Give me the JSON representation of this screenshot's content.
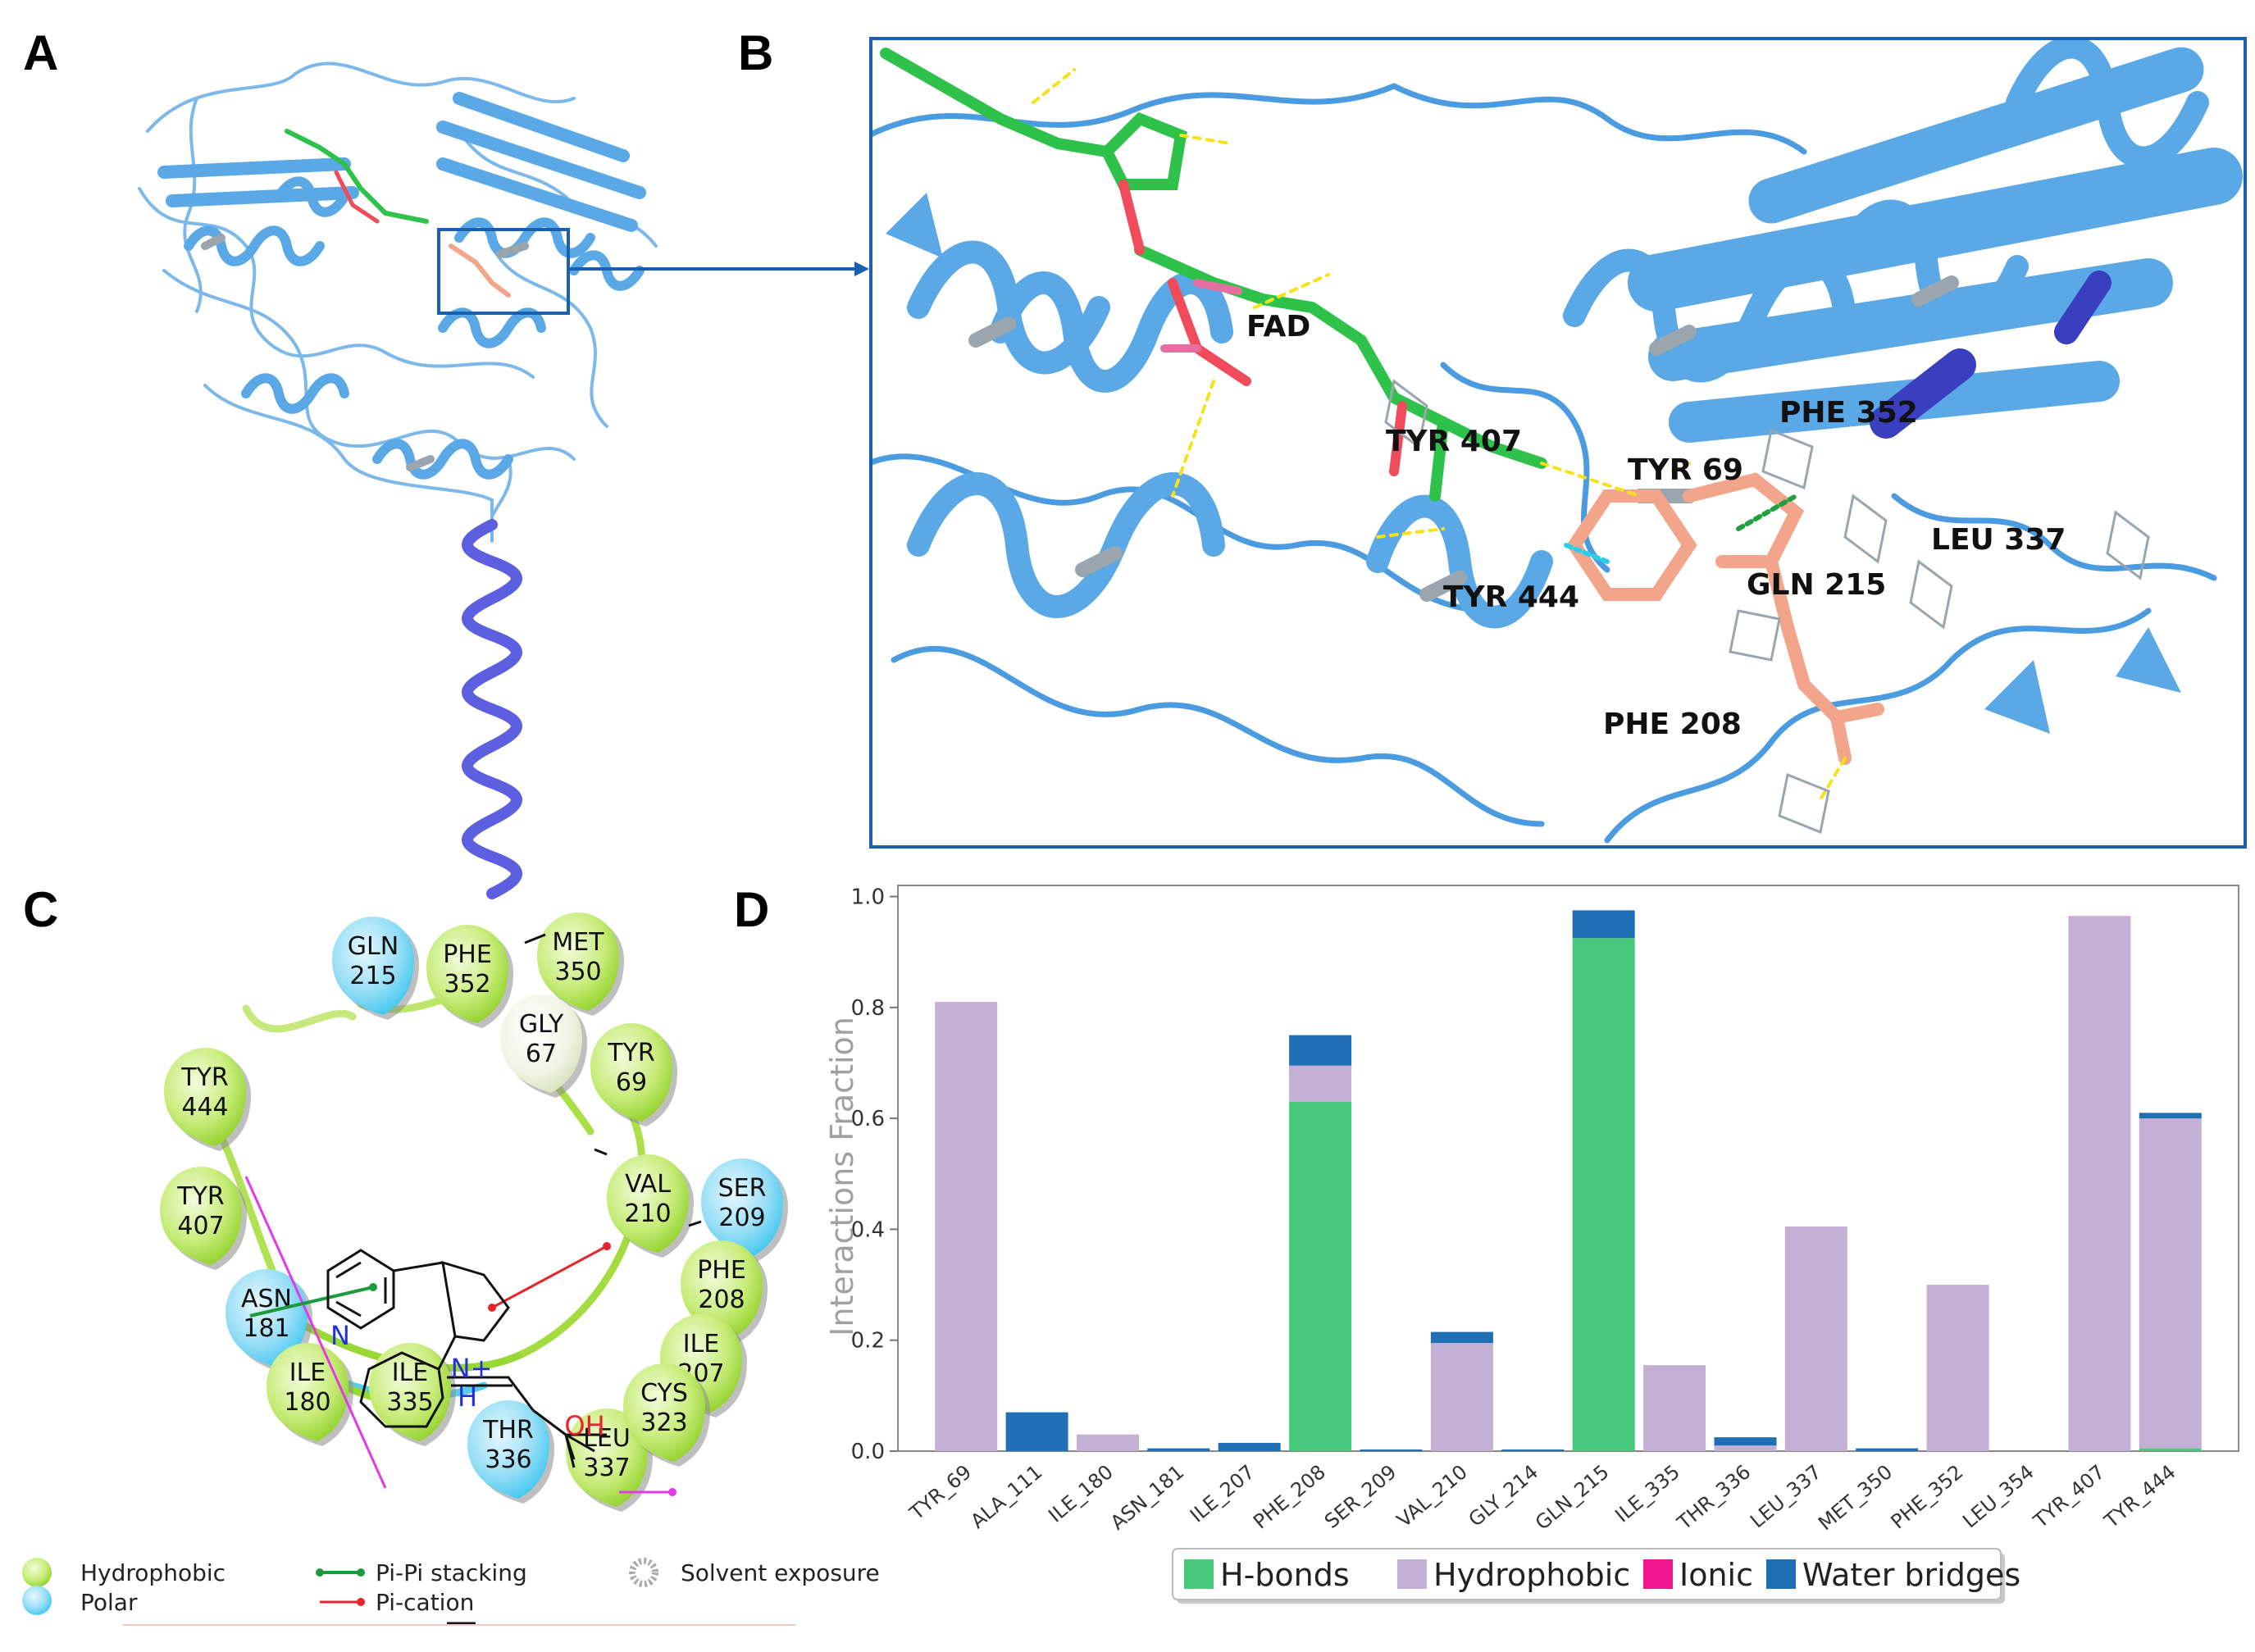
{
  "panels": {
    "a": "A",
    "b": "B",
    "c": "C",
    "d": "D"
  },
  "panel_b": {
    "labels": [
      "FAD",
      "TYR 407",
      "TYR 69",
      "PHE 352",
      "LEU 337",
      "TYR 444",
      "GLN 215",
      "PHE 208"
    ]
  },
  "panel_c": {
    "residues": [
      {
        "name": "GLN",
        "num": "215",
        "kind": "polar"
      },
      {
        "name": "PHE",
        "num": "352",
        "kind": "hydrophobic"
      },
      {
        "name": "MET",
        "num": "350",
        "kind": "hydrophobic"
      },
      {
        "name": "GLY",
        "num": "67",
        "kind": "glycine"
      },
      {
        "name": "TYR",
        "num": "69",
        "kind": "hydrophobic"
      },
      {
        "name": "TYR",
        "num": "444",
        "kind": "hydrophobic"
      },
      {
        "name": "VAL",
        "num": "210",
        "kind": "hydrophobic"
      },
      {
        "name": "SER",
        "num": "209",
        "kind": "polar"
      },
      {
        "name": "TYR",
        "num": "407",
        "kind": "hydrophobic"
      },
      {
        "name": "PHE",
        "num": "208",
        "kind": "hydrophobic"
      },
      {
        "name": "ASN",
        "num": "181",
        "kind": "polar"
      },
      {
        "name": "ILE",
        "num": "207",
        "kind": "hydrophobic"
      },
      {
        "name": "ILE",
        "num": "180",
        "kind": "hydrophobic"
      },
      {
        "name": "ILE",
        "num": "335",
        "kind": "hydrophobic"
      },
      {
        "name": "THR",
        "num": "336",
        "kind": "polar"
      },
      {
        "name": "LEU",
        "num": "337",
        "kind": "hydrophobic"
      },
      {
        "name": "CYS",
        "num": "323",
        "kind": "hydrophobic"
      }
    ],
    "atoms": {
      "n_pyridine": "N",
      "n_plus": "N+",
      "h": "H",
      "oh": "OH"
    },
    "legend": {
      "hydrophobic": "Hydrophobic",
      "polar": "Polar",
      "pi_pi": "Pi-Pi stacking",
      "pi_cation": "Pi-cation",
      "solvent": "Solvent exposure"
    },
    "colors": {
      "hydrophobic": "#9dd82a",
      "polar": "#3ec9f0",
      "pi_pi": "#1a9c3e",
      "pi_cation": "#e8242a",
      "hbond": "#e23be6"
    }
  },
  "chart_data": {
    "type": "bar",
    "stacked": true,
    "categories": [
      "TYR_69",
      "ALA_111",
      "ILE_180",
      "ASN_181",
      "ILE_207",
      "PHE_208",
      "SER_209",
      "VAL_210",
      "GLY_214",
      "GLN_215",
      "ILE_335",
      "THR_336",
      "LEU_337",
      "MET_350",
      "PHE_352",
      "LEU_354",
      "TYR_407",
      "TYR_444"
    ],
    "series": [
      {
        "name": "H-bonds",
        "color": "#48c87a",
        "values": [
          0,
          0,
          0,
          0,
          0,
          0.63,
          0,
          0,
          0,
          0.925,
          0,
          0,
          0,
          0,
          0,
          0,
          0,
          0.005
        ]
      },
      {
        "name": "Hydrophobic",
        "color": "#c5b0d5",
        "values": [
          0.81,
          0,
          0.03,
          0,
          0,
          0.065,
          0,
          0.195,
          0,
          0,
          0.155,
          0.01,
          0.405,
          0,
          0.3,
          0,
          0.965,
          0.595
        ]
      },
      {
        "name": "Ionic",
        "color": "#f0168e",
        "values": [
          0,
          0,
          0,
          0,
          0,
          0,
          0,
          0,
          0,
          0,
          0,
          0,
          0,
          0,
          0,
          0,
          0,
          0
        ]
      },
      {
        "name": "Water bridges",
        "color": "#1f6fb5",
        "values": [
          0,
          0.07,
          0,
          0.005,
          0.015,
          0.055,
          0.003,
          0.02,
          0.003,
          0.05,
          0,
          0.015,
          0,
          0.005,
          0,
          0,
          0,
          0.01
        ]
      }
    ],
    "ylabel": "Interactions Fraction",
    "ylim": [
      0,
      1.02
    ],
    "yticks": [
      "0.0",
      "0.2",
      "0.4",
      "0.6",
      "0.8",
      "1.0"
    ],
    "legend": "bottom"
  }
}
